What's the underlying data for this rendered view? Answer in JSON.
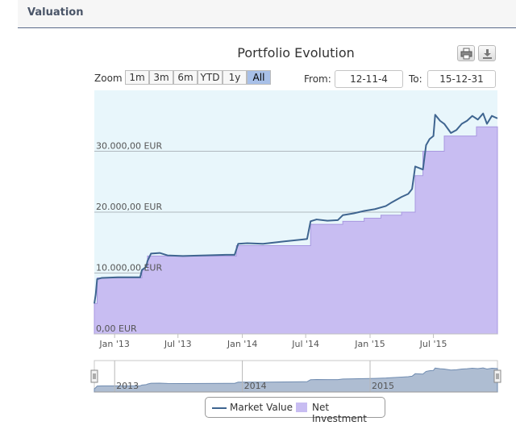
{
  "header": {
    "title": "Valuation"
  },
  "toolbar": {
    "print_icon": "printer-icon",
    "download_icon": "download-icon"
  },
  "range_selector": {
    "zoom_label": "Zoom",
    "buttons": [
      {
        "label": "1m",
        "active": false
      },
      {
        "label": "3m",
        "active": false
      },
      {
        "label": "6m",
        "active": false
      },
      {
        "label": "YTD",
        "active": false
      },
      {
        "label": "1y",
        "active": false
      },
      {
        "label": "All",
        "active": true
      }
    ],
    "from_label": "From:",
    "from_value": "12-11-4",
    "to_label": "To:",
    "to_value": "15-12-31"
  },
  "colors": {
    "plot_bg": "#e8f6fb",
    "market_line": "#3f6590",
    "net_fill": "#c8bdf2",
    "net_line": "#a898e0",
    "navigator_fill": "#aebdd2"
  },
  "chart_data": {
    "type": "area",
    "title": "Portfolio Evolution",
    "x_range": [
      "2012-11-04",
      "2015-12-31"
    ],
    "ylim": [
      0,
      40000
    ],
    "y_ticks": [
      {
        "value": 0,
        "label": "0,00 EUR"
      },
      {
        "value": 10000,
        "label": "10.000,00 EUR"
      },
      {
        "value": 20000,
        "label": "20.000,00 EUR"
      },
      {
        "value": 30000,
        "label": "30.000,00 EUR"
      }
    ],
    "x_ticks": [
      {
        "date": "2013-01-01",
        "label": "Jan '13"
      },
      {
        "date": "2013-07-01",
        "label": "Jul '13"
      },
      {
        "date": "2014-01-01",
        "label": "Jan '14"
      },
      {
        "date": "2014-07-01",
        "label": "Jul '14"
      },
      {
        "date": "2015-01-01",
        "label": "Jan '15"
      },
      {
        "date": "2015-07-01",
        "label": "Jul '15"
      }
    ],
    "navigator_labels": [
      {
        "date": "2013-01-01",
        "label": "2013"
      },
      {
        "date": "2014-01-01",
        "label": "2014"
      },
      {
        "date": "2015-01-01",
        "label": "2015"
      }
    ],
    "grid": true,
    "legend_position": "bottom-center",
    "series": [
      {
        "name": "Market Value",
        "kind": "line",
        "points": [
          [
            "2012-11-04",
            5000
          ],
          [
            "2012-11-08",
            6500
          ],
          [
            "2012-11-12",
            9000
          ],
          [
            "2012-11-25",
            9200
          ],
          [
            "2013-01-10",
            9300
          ],
          [
            "2013-03-15",
            9300
          ],
          [
            "2013-03-20",
            10500
          ],
          [
            "2013-04-01",
            11000
          ],
          [
            "2013-04-05",
            12000
          ],
          [
            "2013-04-15",
            13200
          ],
          [
            "2013-05-10",
            13300
          ],
          [
            "2013-06-01",
            12900
          ],
          [
            "2013-07-15",
            12800
          ],
          [
            "2013-09-15",
            12900
          ],
          [
            "2013-11-15",
            13000
          ],
          [
            "2013-12-10",
            13000
          ],
          [
            "2013-12-20",
            14800
          ],
          [
            "2014-01-15",
            14900
          ],
          [
            "2014-03-01",
            14800
          ],
          [
            "2014-05-01",
            15200
          ],
          [
            "2014-06-20",
            15500
          ],
          [
            "2014-07-05",
            15600
          ],
          [
            "2014-07-15",
            18500
          ],
          [
            "2014-08-01",
            18800
          ],
          [
            "2014-09-01",
            18600
          ],
          [
            "2014-10-01",
            18700
          ],
          [
            "2014-10-15",
            19500
          ],
          [
            "2014-11-15",
            19800
          ],
          [
            "2014-12-15",
            20200
          ],
          [
            "2015-01-15",
            20500
          ],
          [
            "2015-02-15",
            21000
          ],
          [
            "2015-03-01",
            21500
          ],
          [
            "2015-04-01",
            22500
          ],
          [
            "2015-04-20",
            23000
          ],
          [
            "2015-05-01",
            23800
          ],
          [
            "2015-05-10",
            27500
          ],
          [
            "2015-06-01",
            27000
          ],
          [
            "2015-06-10",
            31000
          ],
          [
            "2015-06-20",
            32000
          ],
          [
            "2015-07-01",
            32500
          ],
          [
            "2015-07-06",
            36000
          ],
          [
            "2015-07-20",
            35000
          ],
          [
            "2015-08-01",
            34500
          ],
          [
            "2015-08-20",
            33000
          ],
          [
            "2015-09-05",
            33500
          ],
          [
            "2015-09-20",
            34500
          ],
          [
            "2015-10-05",
            35000
          ],
          [
            "2015-10-20",
            35800
          ],
          [
            "2015-11-05",
            35200
          ],
          [
            "2015-11-20",
            36200
          ],
          [
            "2015-12-01",
            34500
          ],
          [
            "2015-12-15",
            35800
          ],
          [
            "2015-12-31",
            35400
          ]
        ]
      },
      {
        "name": "Net Investment",
        "kind": "step-area",
        "points": [
          [
            "2012-11-04",
            5000
          ],
          [
            "2012-11-12",
            9200
          ],
          [
            "2013-03-20",
            10500
          ],
          [
            "2013-04-05",
            12800
          ],
          [
            "2013-12-15",
            14500
          ],
          [
            "2014-07-15",
            18000
          ],
          [
            "2014-10-15",
            18500
          ],
          [
            "2014-12-15",
            19000
          ],
          [
            "2015-02-01",
            19500
          ],
          [
            "2015-04-01",
            20000
          ],
          [
            "2015-05-10",
            26000
          ],
          [
            "2015-06-01",
            30000
          ],
          [
            "2015-08-01",
            32500
          ],
          [
            "2015-11-01",
            34000
          ],
          [
            "2015-12-31",
            34000
          ]
        ]
      }
    ]
  }
}
